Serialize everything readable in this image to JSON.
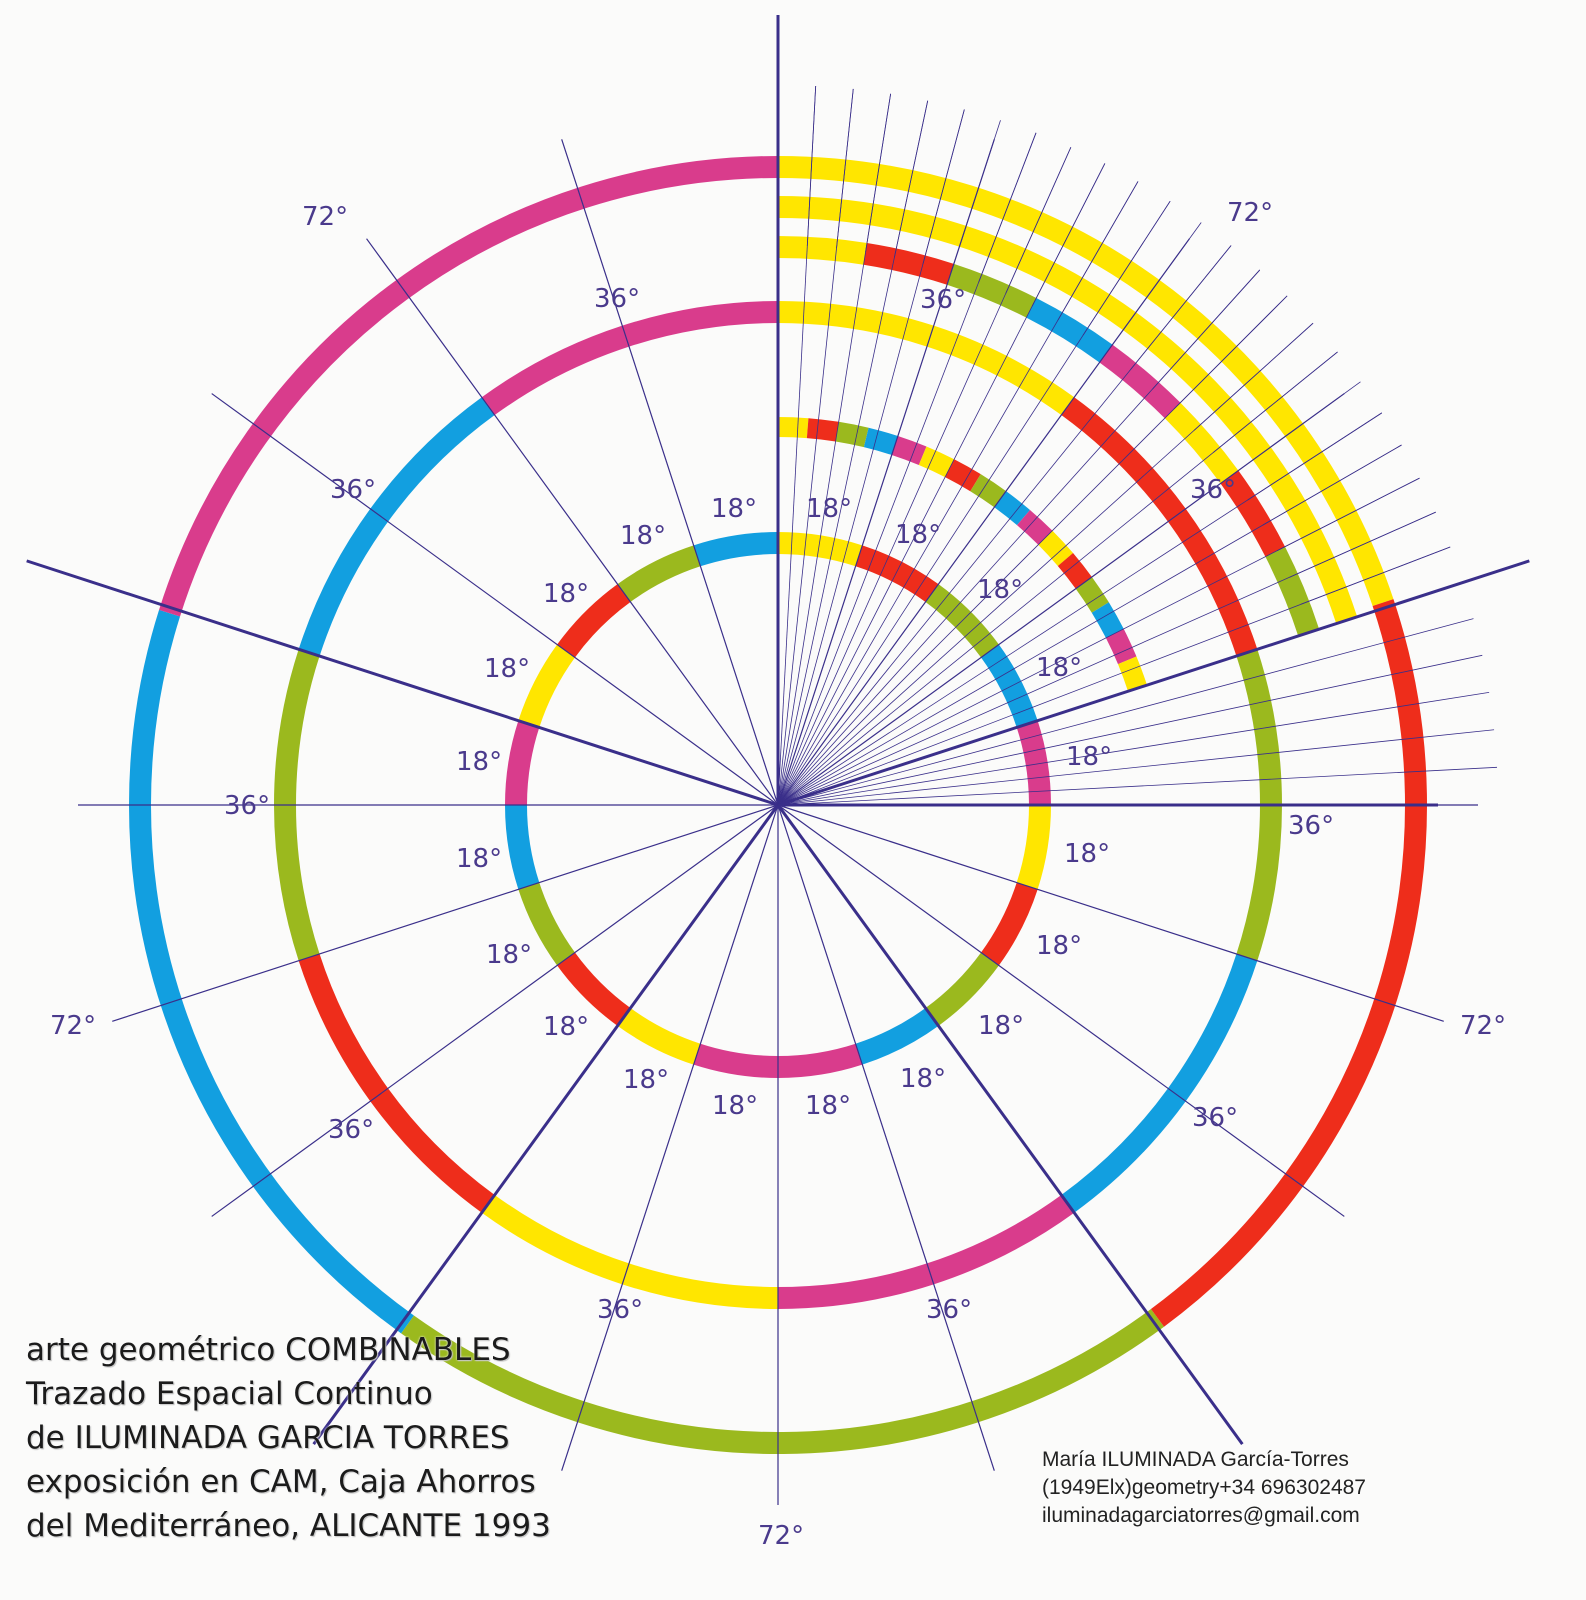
{
  "colors": {
    "yellow": "#ffe600",
    "red": "#ee2d1b",
    "green": "#9bb91e",
    "blue": "#129fe0",
    "magenta": "#d93c8c",
    "line": "#3a2f8a",
    "background": "#fbfbfa"
  },
  "angle_labels": {
    "deg72": "72°",
    "deg36": "36°",
    "deg18": "18°"
  },
  "caption": {
    "line1": "arte geométrico COMBINABLES",
    "line2": "Trazado Espacial Continuo",
    "line3": "de ILUMINADA GARCIA TORRES",
    "line4": "exposición en CAM, Caja Ahorros",
    "line5": "del Mediterráneo, ALICANTE 1993"
  },
  "contact": {
    "name": "María ILUMINADA García-Torres",
    "phone": "(1949Elx)geometry+34 696302487",
    "email": "iluminadagarciatorres@gmail.com"
  }
}
